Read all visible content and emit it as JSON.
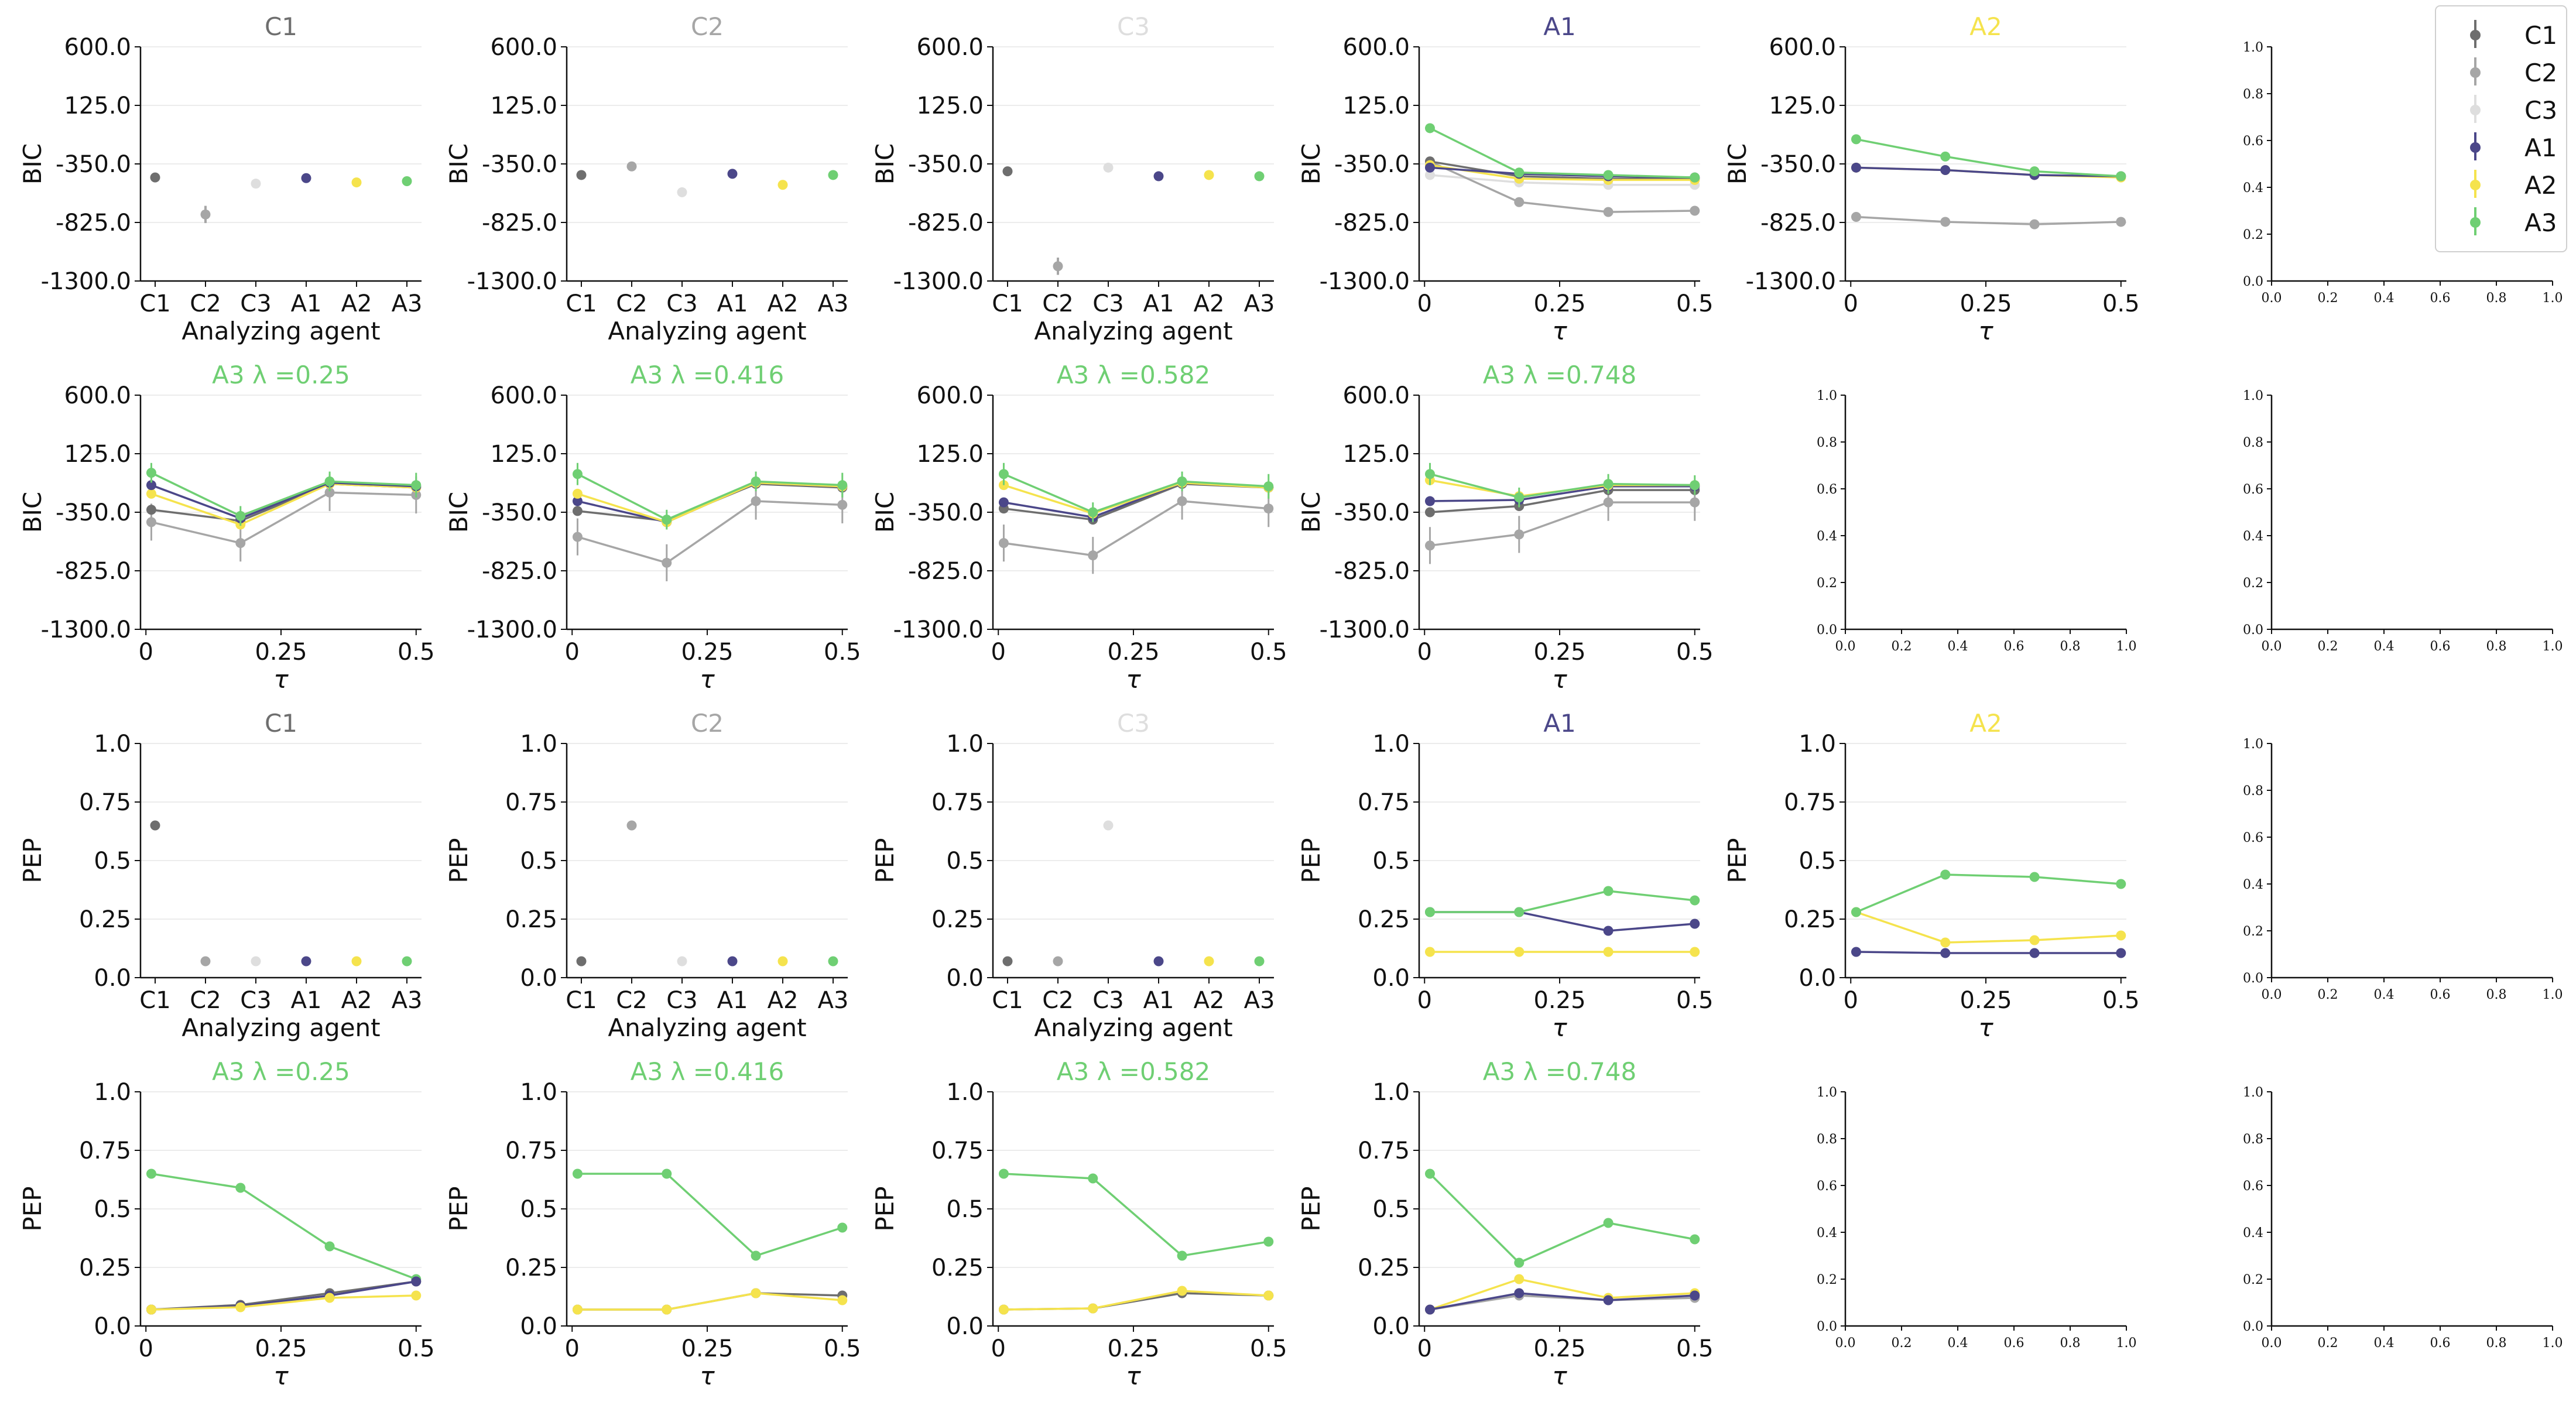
{
  "series_colors": {
    "C1": "#6e6e6e",
    "C2": "#a6a6a6",
    "C3": "#dedede",
    "A1": "#4b4789",
    "A2": "#f5e34d",
    "A3": "#6fcf73"
  },
  "legend": [
    "C1",
    "C2",
    "C3",
    "A1",
    "A2",
    "A3"
  ],
  "ticks": {
    "bic": [
      "600.0",
      "125.0",
      "-350.0",
      "-825.0",
      "-1300.0"
    ],
    "pep": [
      "1.0",
      "0.75",
      "0.5",
      "0.25",
      "0.0"
    ],
    "tau": [
      "0",
      "0.25",
      "0.5"
    ],
    "unit": [
      "0.0",
      "0.2",
      "0.4",
      "0.6",
      "0.8",
      "1.0"
    ],
    "agents": [
      "C1",
      "C2",
      "C3",
      "A1",
      "A2",
      "A3"
    ]
  },
  "labels": {
    "bic_y": "BIC",
    "pep_y": "PEP",
    "agent_x": "Analyzing agent",
    "tau_x": "τ"
  },
  "chart_data": [
    {
      "type": "scatter",
      "title": "C1",
      "ylabel": "BIC",
      "xlabel": "Analyzing agent",
      "ylim": [
        -1300,
        600
      ],
      "categories": [
        "C1",
        "C2",
        "C3",
        "A1",
        "A2",
        "A3"
      ],
      "points": [
        {
          "series": "C1",
          "y": -460,
          "err": 20
        },
        {
          "series": "C2",
          "y": -760,
          "err": 70
        },
        {
          "series": "C3",
          "y": -510,
          "err": 20
        },
        {
          "series": "A1",
          "y": -465,
          "err": 20
        },
        {
          "series": "A2",
          "y": -500,
          "err": 20
        },
        {
          "series": "A3",
          "y": -490,
          "err": 20
        }
      ]
    },
    {
      "type": "scatter",
      "title": "C2",
      "ylabel": "BIC",
      "xlabel": "Analyzing agent",
      "ylim": [
        -1300,
        600
      ],
      "categories": [
        "C1",
        "C2",
        "C3",
        "A1",
        "A2",
        "A3"
      ],
      "points": [
        {
          "series": "C1",
          "y": -440,
          "err": 20
        },
        {
          "series": "C2",
          "y": -370,
          "err": 20
        },
        {
          "series": "C3",
          "y": -580,
          "err": 25
        },
        {
          "series": "A1",
          "y": -430,
          "err": 20
        },
        {
          "series": "A2",
          "y": -520,
          "err": 20
        },
        {
          "series": "A3",
          "y": -440,
          "err": 20
        }
      ]
    },
    {
      "type": "scatter",
      "title": "C3",
      "ylabel": "BIC",
      "xlabel": "Analyzing agent",
      "ylim": [
        -1300,
        600
      ],
      "categories": [
        "C1",
        "C2",
        "C3",
        "A1",
        "A2",
        "A3"
      ],
      "points": [
        {
          "series": "C1",
          "y": -410,
          "err": 20
        },
        {
          "series": "C2",
          "y": -1180,
          "err": 70
        },
        {
          "series": "C3",
          "y": -380,
          "err": 20
        },
        {
          "series": "A1",
          "y": -450,
          "err": 20
        },
        {
          "series": "A2",
          "y": -440,
          "err": 20
        },
        {
          "series": "A3",
          "y": -450,
          "err": 20
        }
      ]
    },
    {
      "type": "line",
      "title": "A1",
      "ylabel": "BIC",
      "xlabel": "τ",
      "ylim": [
        -1300,
        600
      ],
      "xlim": [
        -0.01,
        0.51
      ],
      "x": [
        0.01,
        0.175,
        0.34,
        0.5
      ],
      "series": [
        {
          "name": "C3",
          "values": [
            -440,
            -500,
            -520,
            -520
          ]
        },
        {
          "name": "C2",
          "values": [
            -330,
            -660,
            -740,
            -730
          ]
        },
        {
          "name": "C1",
          "values": [
            -330,
            -450,
            -470,
            -470
          ]
        },
        {
          "name": "A2",
          "values": [
            -360,
            -470,
            -480,
            -480
          ]
        },
        {
          "name": "A1",
          "values": [
            -380,
            -430,
            -450,
            -460
          ]
        },
        {
          "name": "A3",
          "values": [
            -60,
            -420,
            -440,
            -460
          ]
        }
      ]
    },
    {
      "type": "line",
      "title": "A2",
      "ylabel": "BIC",
      "xlabel": "τ",
      "ylim": [
        -1300,
        600
      ],
      "xlim": [
        -0.01,
        0.51
      ],
      "x": [
        0.01,
        0.175,
        0.34,
        0.5
      ],
      "series": [
        {
          "name": "C2",
          "values": [
            -780,
            -820,
            -840,
            -820
          ]
        },
        {
          "name": "A2",
          "values": [
            -380,
            -400,
            -440,
            -460
          ]
        },
        {
          "name": "A1",
          "values": [
            -380,
            -400,
            -440,
            -450
          ]
        },
        {
          "name": "A3",
          "values": [
            -150,
            -290,
            -410,
            -450
          ]
        }
      ]
    },
    {
      "type": "line",
      "title": "A3 λ =0.25",
      "ylabel": "BIC",
      "xlabel": "τ",
      "ylim": [
        -1300,
        600
      ],
      "xlim": [
        -0.01,
        0.51
      ],
      "x": [
        0.01,
        0.175,
        0.34,
        0.5
      ],
      "series": [
        {
          "name": "C2",
          "values": [
            -430,
            -600,
            -190,
            -210
          ],
          "err": [
            150,
            150,
            150,
            150
          ]
        },
        {
          "name": "C1",
          "values": [
            -330,
            -420,
            -120,
            -150
          ]
        },
        {
          "name": "A2",
          "values": [
            -200,
            -450,
            -120,
            -150
          ]
        },
        {
          "name": "A1",
          "values": [
            -130,
            -400,
            -110,
            -140
          ]
        },
        {
          "name": "A3",
          "values": [
            -30,
            -380,
            -100,
            -130
          ],
          "err": [
            80,
            80,
            80,
            100
          ]
        }
      ]
    },
    {
      "type": "line",
      "title": "A3 λ =0.416",
      "ylabel": "BIC",
      "xlabel": "τ",
      "ylim": [
        -1300,
        600
      ],
      "xlim": [
        -0.01,
        0.51
      ],
      "x": [
        0.01,
        0.175,
        0.34,
        0.5
      ],
      "series": [
        {
          "name": "C2",
          "values": [
            -550,
            -760,
            -260,
            -290
          ],
          "err": [
            150,
            150,
            150,
            150
          ]
        },
        {
          "name": "C1",
          "values": [
            -340,
            -420,
            -120,
            -150
          ]
        },
        {
          "name": "A1",
          "values": [
            -260,
            -430,
            -110,
            -140
          ]
        },
        {
          "name": "A2",
          "values": [
            -200,
            -430,
            -110,
            -140
          ]
        },
        {
          "name": "A3",
          "values": [
            -40,
            -410,
            -100,
            -130
          ],
          "err": [
            90,
            80,
            80,
            100
          ]
        }
      ]
    },
    {
      "type": "line",
      "title": "A3 λ =0.582",
      "ylabel": "BIC",
      "xlabel": "τ",
      "ylim": [
        -1300,
        600
      ],
      "xlim": [
        -0.01,
        0.51
      ],
      "x": [
        0.01,
        0.175,
        0.34,
        0.5
      ],
      "series": [
        {
          "name": "C2",
          "values": [
            -600,
            -700,
            -260,
            -320
          ],
          "err": [
            150,
            150,
            150,
            150
          ]
        },
        {
          "name": "C1",
          "values": [
            -320,
            -410,
            -120,
            -150
          ]
        },
        {
          "name": "A1",
          "values": [
            -270,
            -390,
            -110,
            -150
          ]
        },
        {
          "name": "A2",
          "values": [
            -130,
            -360,
            -110,
            -150
          ]
        },
        {
          "name": "A3",
          "values": [
            -40,
            -350,
            -100,
            -140
          ],
          "err": [
            90,
            80,
            80,
            100
          ]
        }
      ]
    },
    {
      "type": "line",
      "title": "A3 λ =0.748",
      "ylabel": "BIC",
      "xlabel": "τ",
      "ylim": [
        -1300,
        600
      ],
      "xlim": [
        -0.01,
        0.51
      ],
      "x": [
        0.01,
        0.175,
        0.34,
        0.5
      ],
      "series": [
        {
          "name": "C2",
          "values": [
            -620,
            -530,
            -270,
            -270
          ],
          "err": [
            150,
            150,
            150,
            150
          ]
        },
        {
          "name": "C1",
          "values": [
            -350,
            -300,
            -170,
            -170
          ]
        },
        {
          "name": "A1",
          "values": [
            -260,
            -250,
            -140,
            -140
          ]
        },
        {
          "name": "A2",
          "values": [
            -90,
            -220,
            -130,
            -130
          ]
        },
        {
          "name": "A3",
          "values": [
            -40,
            -230,
            -120,
            -130
          ],
          "err": [
            90,
            80,
            80,
            80
          ]
        }
      ]
    },
    {
      "type": "scatter",
      "title": "C1",
      "ylabel": "PEP",
      "xlabel": "Analyzing agent",
      "ylim": [
        0,
        1
      ],
      "categories": [
        "C1",
        "C2",
        "C3",
        "A1",
        "A2",
        "A3"
      ],
      "points": [
        {
          "series": "C1",
          "y": 0.65
        },
        {
          "series": "C2",
          "y": 0.07
        },
        {
          "series": "C3",
          "y": 0.07
        },
        {
          "series": "A1",
          "y": 0.07
        },
        {
          "series": "A2",
          "y": 0.07
        },
        {
          "series": "A3",
          "y": 0.07
        }
      ]
    },
    {
      "type": "scatter",
      "title": "C2",
      "ylabel": "PEP",
      "xlabel": "Analyzing agent",
      "ylim": [
        0,
        1
      ],
      "categories": [
        "C1",
        "C2",
        "C3",
        "A1",
        "A2",
        "A3"
      ],
      "points": [
        {
          "series": "C1",
          "y": 0.07
        },
        {
          "series": "C2",
          "y": 0.65
        },
        {
          "series": "C3",
          "y": 0.07
        },
        {
          "series": "A1",
          "y": 0.07
        },
        {
          "series": "A2",
          "y": 0.07
        },
        {
          "series": "A3",
          "y": 0.07
        }
      ]
    },
    {
      "type": "scatter",
      "title": "C3",
      "ylabel": "PEP",
      "xlabel": "Analyzing agent",
      "ylim": [
        0,
        1
      ],
      "categories": [
        "C1",
        "C2",
        "C3",
        "A1",
        "A2",
        "A3"
      ],
      "points": [
        {
          "series": "C1",
          "y": 0.07
        },
        {
          "series": "C2",
          "y": 0.07
        },
        {
          "series": "C3",
          "y": 0.65
        },
        {
          "series": "A1",
          "y": 0.07
        },
        {
          "series": "A2",
          "y": 0.07
        },
        {
          "series": "A3",
          "y": 0.07
        }
      ]
    },
    {
      "type": "line",
      "title": "A1",
      "ylabel": "PEP",
      "xlabel": "τ",
      "ylim": [
        0,
        1
      ],
      "xlim": [
        -0.01,
        0.51
      ],
      "x": [
        0.01,
        0.175,
        0.34,
        0.5
      ],
      "series": [
        {
          "name": "A2",
          "values": [
            0.11,
            0.11,
            0.11,
            0.11
          ]
        },
        {
          "name": "A1",
          "values": [
            0.28,
            0.28,
            0.2,
            0.23
          ]
        },
        {
          "name": "A3",
          "values": [
            0.28,
            0.28,
            0.37,
            0.33
          ]
        }
      ]
    },
    {
      "type": "line",
      "title": "A2",
      "ylabel": "PEP",
      "xlabel": "τ",
      "ylim": [
        0,
        1
      ],
      "xlim": [
        -0.01,
        0.51
      ],
      "x": [
        0.01,
        0.175,
        0.34,
        0.5
      ],
      "series": [
        {
          "name": "A1",
          "values": [
            0.11,
            0.105,
            0.105,
            0.105
          ]
        },
        {
          "name": "A2",
          "values": [
            0.28,
            0.15,
            0.16,
            0.18
          ]
        },
        {
          "name": "A3",
          "values": [
            0.28,
            0.44,
            0.43,
            0.4
          ]
        }
      ]
    },
    {
      "type": "line",
      "title": "A3 λ =0.25",
      "ylabel": "PEP",
      "xlabel": "τ",
      "ylim": [
        0,
        1
      ],
      "xlim": [
        -0.01,
        0.51
      ],
      "x": [
        0.01,
        0.175,
        0.34,
        0.5
      ],
      "series": [
        {
          "name": "A3",
          "values": [
            0.65,
            0.59,
            0.34,
            0.2
          ]
        },
        {
          "name": "C1",
          "values": [
            0.07,
            0.09,
            0.14,
            0.19
          ]
        },
        {
          "name": "A1",
          "values": [
            0.07,
            0.085,
            0.13,
            0.19
          ]
        },
        {
          "name": "A2",
          "values": [
            0.07,
            0.08,
            0.12,
            0.13
          ]
        }
      ]
    },
    {
      "type": "line",
      "title": "A3 λ =0.416",
      "ylabel": "PEP",
      "xlabel": "τ",
      "ylim": [
        0,
        1
      ],
      "xlim": [
        -0.01,
        0.51
      ],
      "x": [
        0.01,
        0.175,
        0.34,
        0.5
      ],
      "series": [
        {
          "name": "A3",
          "values": [
            0.65,
            0.65,
            0.3,
            0.42
          ]
        },
        {
          "name": "C1",
          "values": [
            0.07,
            0.07,
            0.14,
            0.13
          ]
        },
        {
          "name": "A2",
          "values": [
            0.07,
            0.07,
            0.14,
            0.11
          ]
        }
      ]
    },
    {
      "type": "line",
      "title": "A3 λ =0.582",
      "ylabel": "PEP",
      "xlabel": "τ",
      "ylim": [
        0,
        1
      ],
      "xlim": [
        -0.01,
        0.51
      ],
      "x": [
        0.01,
        0.175,
        0.34,
        0.5
      ],
      "series": [
        {
          "name": "A3",
          "values": [
            0.65,
            0.63,
            0.3,
            0.36
          ]
        },
        {
          "name": "C1",
          "values": [
            0.07,
            0.075,
            0.14,
            0.13
          ]
        },
        {
          "name": "A2",
          "values": [
            0.07,
            0.075,
            0.15,
            0.13
          ]
        }
      ]
    },
    {
      "type": "line",
      "title": "A3 λ =0.748",
      "ylabel": "PEP",
      "xlabel": "τ",
      "ylim": [
        0,
        1
      ],
      "xlim": [
        -0.01,
        0.51
      ],
      "x": [
        0.01,
        0.175,
        0.34,
        0.5
      ],
      "series": [
        {
          "name": "A3",
          "values": [
            0.65,
            0.27,
            0.44,
            0.37
          ]
        },
        {
          "name": "A2",
          "values": [
            0.07,
            0.2,
            0.12,
            0.14
          ]
        },
        {
          "name": "C2",
          "values": [
            0.07,
            0.13,
            0.11,
            0.12
          ]
        },
        {
          "name": "A1",
          "values": [
            0.07,
            0.14,
            0.11,
            0.13
          ]
        }
      ]
    }
  ]
}
